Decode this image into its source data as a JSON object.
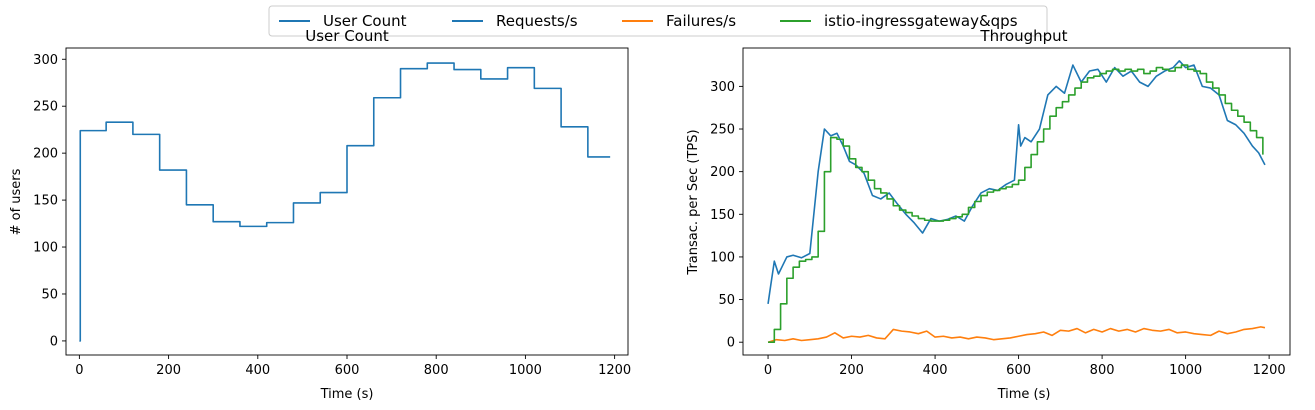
{
  "legend": {
    "placement": "top-center",
    "entries": [
      {
        "label": "User Count",
        "color": "#1f77b4"
      },
      {
        "label": "Requests/s",
        "color": "#1f77b4"
      },
      {
        "label": "Failures/s",
        "color": "#ff7f0e"
      },
      {
        "label": "istio-ingressgateway&qps",
        "color": "#2ca02c"
      }
    ]
  },
  "chart_data": [
    {
      "type": "line",
      "title": "User Count",
      "xlabel": "Time (s)",
      "ylabel": "# of users",
      "xlim": [
        -30,
        1230
      ],
      "ylim": [
        -15,
        312
      ],
      "xticks": [
        0,
        200,
        400,
        600,
        800,
        1000,
        1200
      ],
      "yticks": [
        0,
        50,
        100,
        150,
        200,
        250,
        300
      ],
      "grid": false,
      "series": [
        {
          "name": "User Count",
          "color": "#1f77b4",
          "step": true,
          "x": [
            0,
            2,
            60,
            120,
            180,
            240,
            300,
            360,
            420,
            480,
            540,
            600,
            660,
            720,
            780,
            840,
            900,
            960,
            1020,
            1080,
            1140,
            1190
          ],
          "y": [
            0,
            224,
            233,
            220,
            182,
            145,
            127,
            122,
            126,
            147,
            158,
            208,
            259,
            290,
            296,
            289,
            279,
            291,
            269,
            228,
            196,
            196
          ]
        }
      ]
    },
    {
      "type": "line",
      "title": "Throughput",
      "xlabel": "Time (s)",
      "ylabel": "Transac. per Sec (TPS)",
      "xlim": [
        -60,
        1250
      ],
      "ylim": [
        -15,
        345
      ],
      "xticks": [
        0,
        200,
        400,
        600,
        800,
        1000,
        1200
      ],
      "yticks": [
        0,
        50,
        100,
        150,
        200,
        250,
        300
      ],
      "grid": false,
      "series": [
        {
          "name": "Requests/s",
          "color": "#1f77b4",
          "x": [
            0,
            5,
            15,
            25,
            35,
            45,
            60,
            80,
            100,
            120,
            135,
            150,
            165,
            180,
            195,
            210,
            230,
            250,
            270,
            290,
            310,
            330,
            350,
            370,
            390,
            410,
            430,
            450,
            470,
            490,
            510,
            530,
            550,
            570,
            590,
            600,
            605,
            615,
            630,
            650,
            670,
            690,
            710,
            730,
            750,
            770,
            790,
            810,
            830,
            850,
            870,
            890,
            910,
            930,
            950,
            970,
            985,
            1000,
            1020,
            1040,
            1060,
            1080,
            1100,
            1120,
            1140,
            1160,
            1175,
            1190
          ],
          "y": [
            45,
            62,
            95,
            80,
            90,
            100,
            102,
            99,
            104,
            200,
            250,
            242,
            245,
            230,
            212,
            208,
            198,
            172,
            168,
            175,
            162,
            150,
            140,
            128,
            145,
            142,
            144,
            148,
            142,
            160,
            175,
            180,
            178,
            185,
            190,
            255,
            230,
            240,
            235,
            250,
            290,
            300,
            292,
            325,
            305,
            318,
            320,
            305,
            322,
            312,
            318,
            305,
            300,
            312,
            318,
            322,
            330,
            322,
            325,
            300,
            298,
            290,
            260,
            255,
            245,
            230,
            222,
            208
          ]
        },
        {
          "name": "Failures/s",
          "color": "#ff7f0e",
          "x": [
            0,
            20,
            40,
            60,
            80,
            100,
            120,
            140,
            160,
            180,
            200,
            220,
            240,
            260,
            280,
            300,
            320,
            340,
            360,
            380,
            400,
            420,
            440,
            460,
            480,
            500,
            520,
            540,
            560,
            580,
            600,
            620,
            640,
            660,
            680,
            700,
            720,
            740,
            760,
            780,
            800,
            820,
            840,
            860,
            880,
            900,
            920,
            940,
            960,
            980,
            1000,
            1020,
            1040,
            1060,
            1080,
            1100,
            1120,
            1140,
            1160,
            1180,
            1190
          ],
          "y": [
            0,
            3,
            2,
            4,
            2,
            3,
            4,
            6,
            11,
            5,
            7,
            6,
            8,
            5,
            4,
            15,
            13,
            12,
            10,
            13,
            6,
            7,
            5,
            6,
            4,
            6,
            5,
            3,
            4,
            5,
            7,
            9,
            10,
            12,
            8,
            14,
            13,
            16,
            11,
            15,
            12,
            16,
            13,
            15,
            12,
            16,
            14,
            13,
            15,
            11,
            12,
            10,
            9,
            8,
            13,
            10,
            12,
            15,
            16,
            18,
            17
          ]
        },
        {
          "name": "istio-ingressgateway&qps",
          "color": "#2ca02c",
          "step": true,
          "x": [
            0,
            15,
            30,
            45,
            60,
            75,
            90,
            105,
            120,
            135,
            150,
            165,
            180,
            195,
            210,
            225,
            240,
            255,
            270,
            285,
            300,
            315,
            330,
            345,
            360,
            375,
            390,
            405,
            420,
            435,
            450,
            465,
            480,
            495,
            510,
            525,
            540,
            555,
            570,
            585,
            600,
            615,
            630,
            645,
            660,
            675,
            690,
            705,
            720,
            735,
            750,
            765,
            780,
            795,
            810,
            825,
            840,
            855,
            870,
            885,
            900,
            915,
            930,
            945,
            960,
            975,
            990,
            1005,
            1020,
            1035,
            1050,
            1065,
            1080,
            1095,
            1110,
            1125,
            1140,
            1155,
            1170,
            1185
          ],
          "y": [
            0,
            15,
            45,
            75,
            88,
            95,
            97,
            100,
            130,
            200,
            240,
            238,
            230,
            215,
            205,
            200,
            190,
            180,
            175,
            168,
            160,
            155,
            152,
            148,
            145,
            143,
            142,
            142,
            143,
            145,
            147,
            150,
            158,
            165,
            172,
            176,
            178,
            180,
            182,
            185,
            190,
            205,
            220,
            235,
            250,
            265,
            275,
            282,
            290,
            298,
            305,
            310,
            312,
            315,
            318,
            320,
            318,
            320,
            318,
            320,
            315,
            318,
            322,
            320,
            318,
            322,
            325,
            320,
            318,
            315,
            305,
            298,
            290,
            280,
            272,
            265,
            258,
            248,
            240,
            220
          ]
        }
      ]
    }
  ]
}
